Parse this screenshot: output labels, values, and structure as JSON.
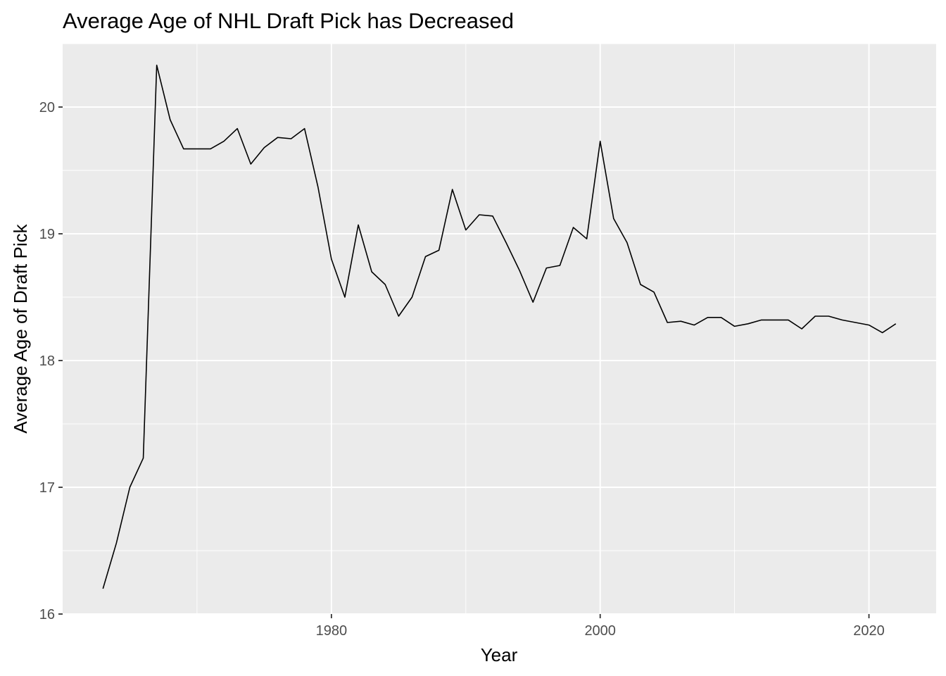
{
  "chart_data": {
    "type": "line",
    "title": "Average Age of NHL Draft Pick has Decreased",
    "xlabel": "Year",
    "ylabel": "Average Age of Draft Pick",
    "xlim": [
      1960,
      2025
    ],
    "ylim": [
      16,
      20.5
    ],
    "x_ticks": [
      1980,
      2000,
      2020
    ],
    "y_ticks": [
      16,
      17,
      18,
      19,
      20
    ],
    "grid": true,
    "legend": "none",
    "colors": {
      "panel_background": "#ebebeb",
      "grid": "#ffffff",
      "line": "#000000",
      "tick_label": "#4d4d4d"
    },
    "series": [
      {
        "x": [
          1963,
          1964,
          1965,
          1966,
          1967,
          1968,
          1969,
          1970,
          1971,
          1972,
          1973,
          1974,
          1975,
          1976,
          1977,
          1978,
          1979,
          1980,
          1981,
          1982,
          1983,
          1984,
          1985,
          1986,
          1987,
          1988,
          1989,
          1990,
          1991,
          1992,
          1993,
          1994,
          1995,
          1996,
          1997,
          1998,
          1999,
          2000,
          2001,
          2002,
          2003,
          2004,
          2005,
          2006,
          2007,
          2008,
          2009,
          2010,
          2011,
          2012,
          2013,
          2014,
          2015,
          2016,
          2017,
          2018,
          2019,
          2020,
          2021,
          2022
        ],
        "values": [
          16.2,
          16.56,
          17.0,
          17.23,
          20.33,
          19.9,
          19.67,
          19.67,
          19.67,
          19.73,
          19.83,
          19.55,
          19.68,
          19.76,
          19.75,
          19.83,
          19.37,
          18.8,
          18.5,
          19.07,
          18.7,
          18.6,
          18.35,
          18.5,
          18.82,
          18.87,
          19.35,
          19.03,
          19.15,
          19.14,
          18.93,
          18.71,
          18.46,
          18.73,
          18.75,
          19.05,
          18.96,
          19.73,
          19.12,
          18.93,
          18.6,
          18.54,
          18.3,
          18.31,
          18.28,
          18.34,
          18.34,
          18.27,
          18.29,
          18.32,
          18.32,
          18.32,
          18.25,
          18.35,
          18.35,
          18.32,
          18.3,
          18.28,
          18.22,
          18.29
        ]
      }
    ]
  }
}
